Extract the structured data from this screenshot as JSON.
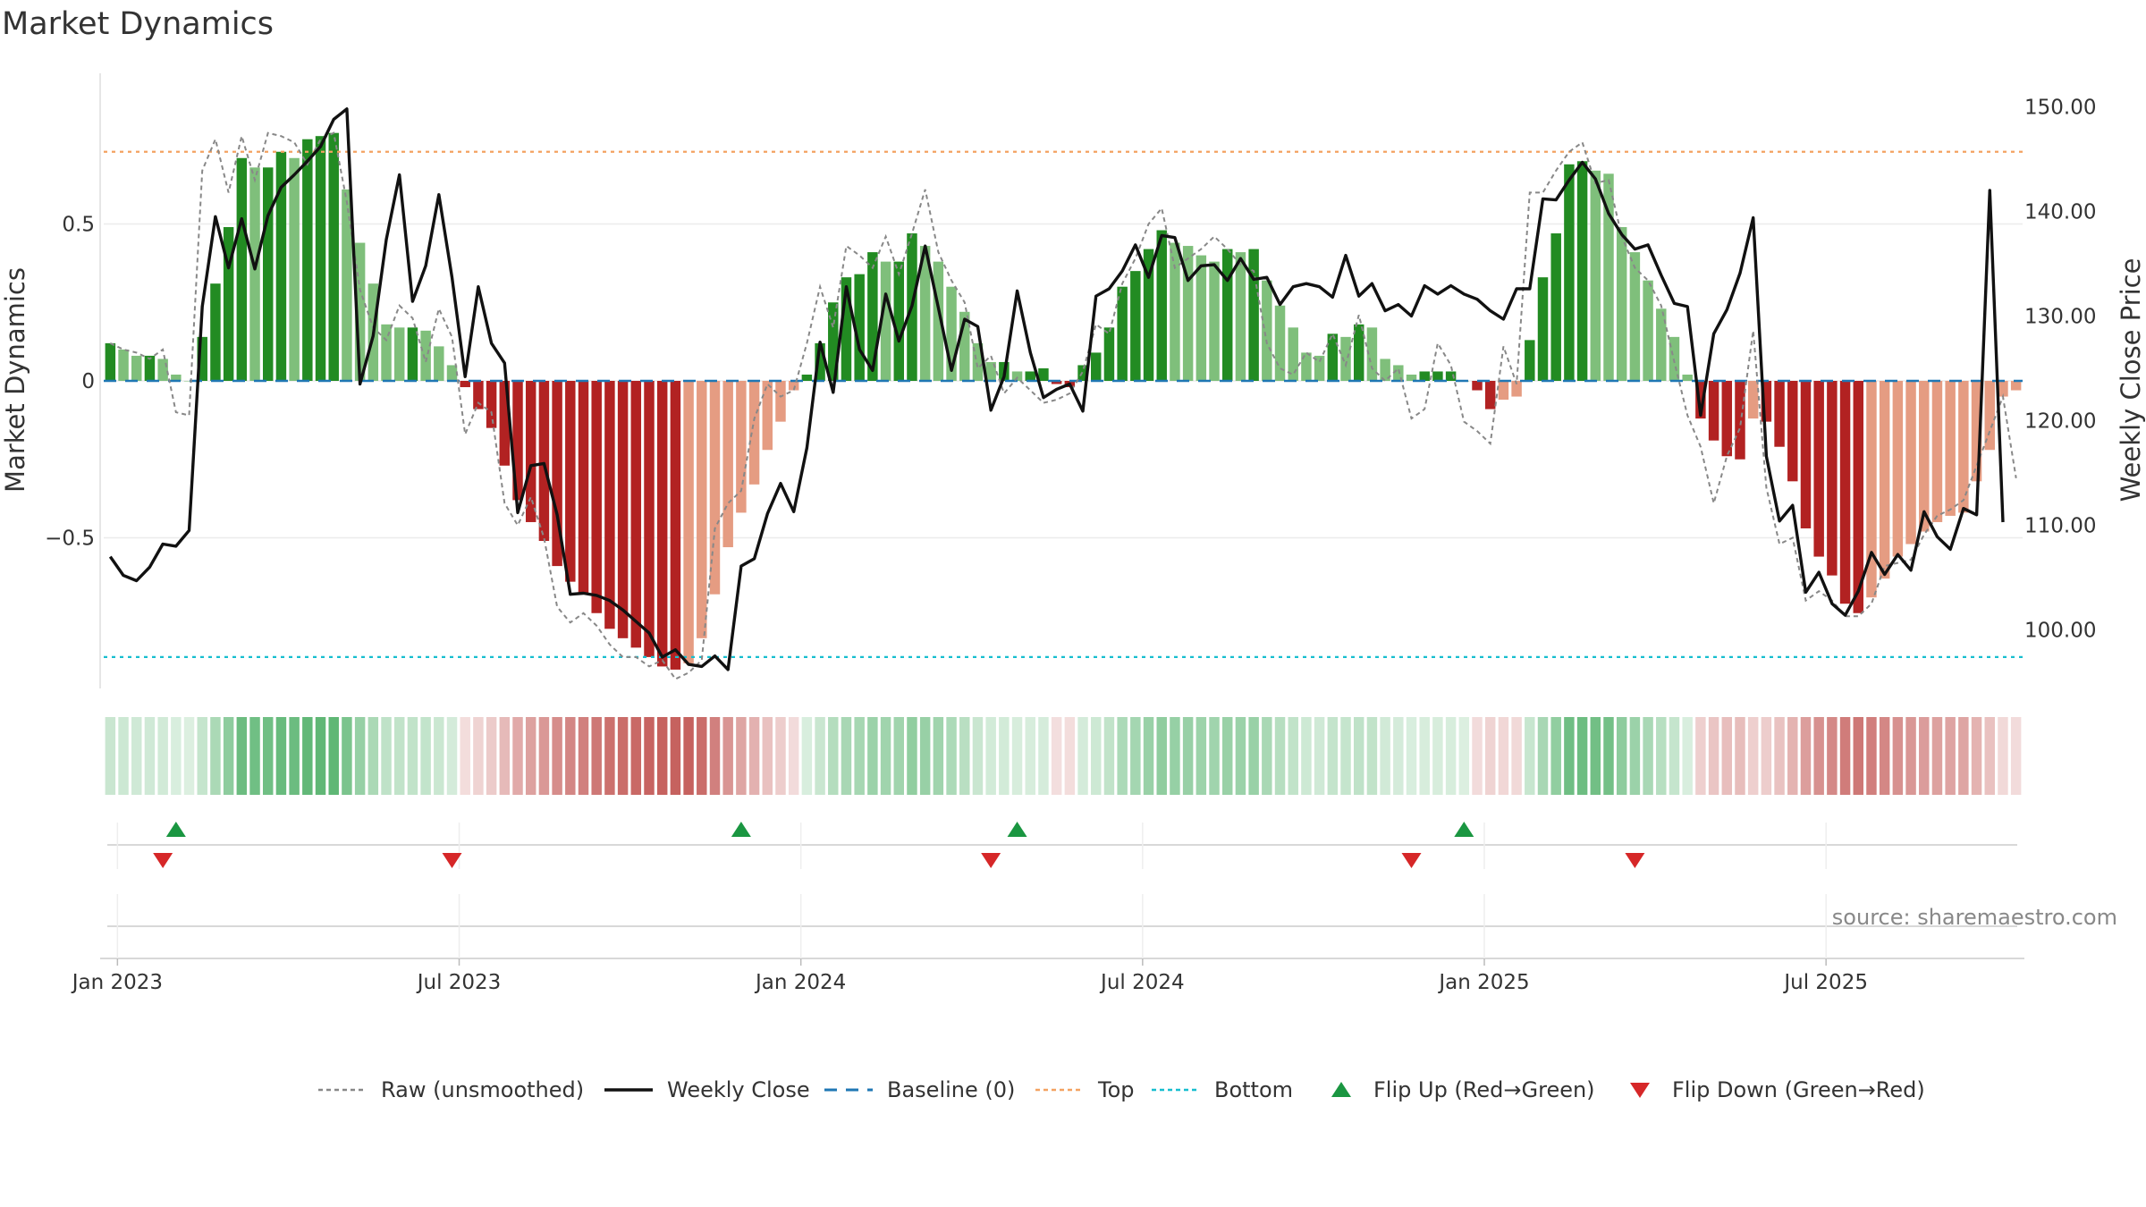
{
  "title": "Market Dynamics",
  "source": "source: sharemaestro.com",
  "colors": {
    "strong_green": "#228b22",
    "light_green": "#7fbf7b",
    "strong_red": "#b22222",
    "light_red": "#e59c82",
    "weekly_close": "#111111",
    "raw": "#888888",
    "baseline": "#1f77b4",
    "top": "#f4a261",
    "bottom": "#17becf",
    "flip_up": "#1a9641",
    "flip_down": "#d62728"
  },
  "legend": [
    {
      "key": "raw",
      "label": "Raw (unsmoothed)",
      "style": "dotted-line"
    },
    {
      "key": "weekly_close",
      "label": "Weekly Close",
      "style": "solid-line"
    },
    {
      "key": "baseline",
      "label": "Baseline (0)",
      "style": "dashed-line"
    },
    {
      "key": "top",
      "label": "Top",
      "style": "dotted-line"
    },
    {
      "key": "bottom",
      "label": "Bottom",
      "style": "dotted-line"
    },
    {
      "key": "flip_up",
      "label": "Flip Up (Red→Green)",
      "style": "triangle-up"
    },
    {
      "key": "flip_down",
      "label": "Flip Down (Green→Red)",
      "style": "triangle-down"
    }
  ],
  "chart_data": {
    "type": "bar",
    "title": "Market Dynamics",
    "ylabel": "Market Dynamics",
    "y2label": "Weekly Close Price",
    "ylim": [
      -0.98,
      0.98
    ],
    "y2lim": [
      94.4,
      153.2
    ],
    "yticks": [
      {
        "value": -0.5,
        "label": "−0.5"
      },
      {
        "value": 0,
        "label": "0"
      },
      {
        "value": 0.5,
        "label": "0.5"
      }
    ],
    "y2ticks": [
      {
        "value": 100,
        "label": "100.00"
      },
      {
        "value": 110,
        "label": "110.00"
      },
      {
        "value": 120,
        "label": "120.00"
      },
      {
        "value": 130,
        "label": "130.00"
      },
      {
        "value": 140,
        "label": "140.00"
      },
      {
        "value": 150,
        "label": "150.00"
      }
    ],
    "xticks": [
      {
        "week": 1,
        "label": "Jan 2023"
      },
      {
        "week": 27,
        "label": "Jul 2023"
      },
      {
        "week": 53,
        "label": "Jan 2024"
      },
      {
        "week": 79,
        "label": "Jul 2024"
      },
      {
        "week": 105,
        "label": "Jan 2025"
      },
      {
        "week": 131,
        "label": "Jul 2025"
      }
    ],
    "top": 0.73,
    "bottom": -0.88,
    "baseline": 0,
    "grid": true,
    "legend_position": "bottom",
    "flip_up_weeks": [
      6,
      49,
      70,
      104
    ],
    "flip_down_weeks": [
      5,
      27,
      68,
      100,
      117
    ],
    "series": [
      {
        "name": "Market Dynamics",
        "values": [
          0.12,
          0.1,
          0.08,
          0.08,
          0.07,
          0.02,
          0.0,
          0.14,
          0.31,
          0.49,
          0.71,
          0.68,
          0.68,
          0.73,
          0.71,
          0.77,
          0.78,
          0.79,
          0.61,
          0.44,
          0.31,
          0.18,
          0.17,
          0.17,
          0.16,
          0.11,
          0.05,
          -0.02,
          -0.09,
          -0.15,
          -0.27,
          -0.38,
          -0.45,
          -0.51,
          -0.59,
          -0.64,
          -0.68,
          -0.74,
          -0.79,
          -0.82,
          -0.85,
          -0.88,
          -0.91,
          -0.92,
          -0.9,
          -0.82,
          -0.68,
          -0.53,
          -0.42,
          -0.33,
          -0.22,
          -0.13,
          -0.03,
          0.02,
          0.12,
          0.25,
          0.33,
          0.34,
          0.41,
          0.38,
          0.38,
          0.47,
          0.43,
          0.38,
          0.3,
          0.22,
          0.12,
          0.06,
          0.06,
          0.03,
          0.03,
          0.04,
          -0.01,
          -0.02,
          0.05,
          0.09,
          0.17,
          0.3,
          0.35,
          0.42,
          0.48,
          0.44,
          0.43,
          0.4,
          0.38,
          0.42,
          0.41,
          0.42,
          0.32,
          0.24,
          0.17,
          0.09,
          0.08,
          0.15,
          0.14,
          0.18,
          0.17,
          0.07,
          0.05,
          0.02,
          0.03,
          0.03,
          0.03,
          0.0,
          -0.03,
          -0.09,
          -0.06,
          -0.05,
          0.13,
          0.33,
          0.47,
          0.69,
          0.7,
          0.67,
          0.66,
          0.49,
          0.41,
          0.32,
          0.23,
          0.14,
          0.02,
          -0.12,
          -0.19,
          -0.24,
          -0.25,
          -0.12,
          -0.13,
          -0.21,
          -0.32,
          -0.47,
          -0.56,
          -0.62,
          -0.71,
          -0.74,
          -0.69,
          -0.63,
          -0.56,
          -0.52,
          -0.48,
          -0.45,
          -0.43,
          -0.42,
          -0.32,
          -0.22,
          -0.05,
          -0.03
        ]
      },
      {
        "name": "Raw (unsmoothed)",
        "values": [
          0.12,
          0.1,
          0.09,
          0.07,
          0.1,
          -0.1,
          -0.11,
          0.67,
          0.77,
          0.6,
          0.78,
          0.64,
          0.79,
          0.78,
          0.76,
          0.69,
          0.77,
          0.79,
          0.57,
          0.29,
          0.17,
          0.13,
          0.24,
          0.2,
          0.06,
          0.23,
          0.14,
          -0.17,
          -0.07,
          -0.1,
          -0.39,
          -0.46,
          -0.37,
          -0.5,
          -0.72,
          -0.77,
          -0.74,
          -0.78,
          -0.84,
          -0.88,
          -0.88,
          -0.91,
          -0.89,
          -0.95,
          -0.93,
          -0.89,
          -0.47,
          -0.39,
          -0.35,
          -0.12,
          -0.01,
          -0.05,
          -0.03,
          0.12,
          0.3,
          0.17,
          0.43,
          0.4,
          0.36,
          0.46,
          0.34,
          0.47,
          0.61,
          0.41,
          0.32,
          0.25,
          0.04,
          0.08,
          -0.04,
          0.01,
          -0.03,
          -0.07,
          -0.06,
          -0.04,
          0.03,
          0.18,
          0.15,
          0.31,
          0.39,
          0.5,
          0.55,
          0.36,
          0.39,
          0.42,
          0.46,
          0.42,
          0.37,
          0.35,
          0.12,
          0.04,
          0.02,
          0.09,
          0.06,
          0.15,
          0.05,
          0.21,
          0.04,
          -0.0,
          0.04,
          -0.12,
          -0.09,
          0.12,
          0.05,
          -0.13,
          -0.16,
          -0.2,
          0.11,
          -0.01,
          0.6,
          0.6,
          0.67,
          0.73,
          0.76,
          0.63,
          0.64,
          0.46,
          0.36,
          0.32,
          0.24,
          0.06,
          -0.11,
          -0.21,
          -0.39,
          -0.24,
          -0.15,
          0.16,
          -0.34,
          -0.52,
          -0.5,
          -0.7,
          -0.67,
          -0.7,
          -0.75,
          -0.75,
          -0.71,
          -0.59,
          -0.58,
          -0.57,
          -0.49,
          -0.43,
          -0.41,
          -0.38,
          -0.27,
          -0.16,
          -0.05,
          -0.31
        ]
      },
      {
        "name": "Weekly Close",
        "values": [
          107.0,
          105.2,
          104.7,
          106.0,
          108.2,
          108.0,
          109.5,
          130.9,
          139.5,
          134.6,
          139.3,
          134.5,
          139.6,
          142.3,
          143.5,
          144.8,
          146.2,
          148.8,
          149.8,
          123.5,
          128.1,
          137.3,
          143.5,
          131.4,
          134.8,
          141.6,
          133.7,
          124.2,
          132.8,
          127.4,
          125.5,
          111.2,
          115.7,
          115.9,
          111.0,
          103.4,
          103.5,
          103.3,
          102.8,
          101.9,
          100.8,
          99.7,
          97.4,
          98.1,
          96.7,
          96.5,
          97.5,
          96.2,
          106.1,
          106.8,
          111.1,
          114.0,
          111.3,
          117.4,
          127.5,
          122.7,
          132.8,
          126.8,
          124.8,
          132.1,
          127.6,
          131.0,
          136.7,
          130.8,
          124.8,
          129.7,
          129.0,
          121.0,
          124.2,
          132.4,
          126.5,
          122.2,
          123.0,
          123.5,
          120.9,
          131.9,
          132.6,
          134.3,
          136.8,
          133.7,
          137.7,
          137.5,
          133.4,
          134.8,
          134.9,
          133.4,
          135.5,
          133.5,
          133.7,
          131.1,
          132.8,
          133.1,
          132.8,
          131.8,
          135.8,
          131.9,
          133.1,
          130.5,
          131.1,
          130.0,
          132.9,
          132.1,
          132.9,
          132.1,
          131.6,
          130.5,
          129.7,
          132.6,
          132.6,
          141.2,
          141.1,
          143.0,
          144.7,
          143.1,
          139.8,
          137.8,
          136.4,
          136.8,
          133.9,
          131.2,
          130.9,
          120.5,
          128.3,
          130.6,
          134.1,
          139.4,
          116.6,
          110.4,
          111.9,
          103.6,
          105.5,
          102.5,
          101.4,
          103.7,
          107.4,
          105.3,
          107.2,
          105.7,
          111.3,
          108.9,
          107.7,
          111.6,
          111.0,
          142.0,
          110.3
        ]
      }
    ]
  }
}
